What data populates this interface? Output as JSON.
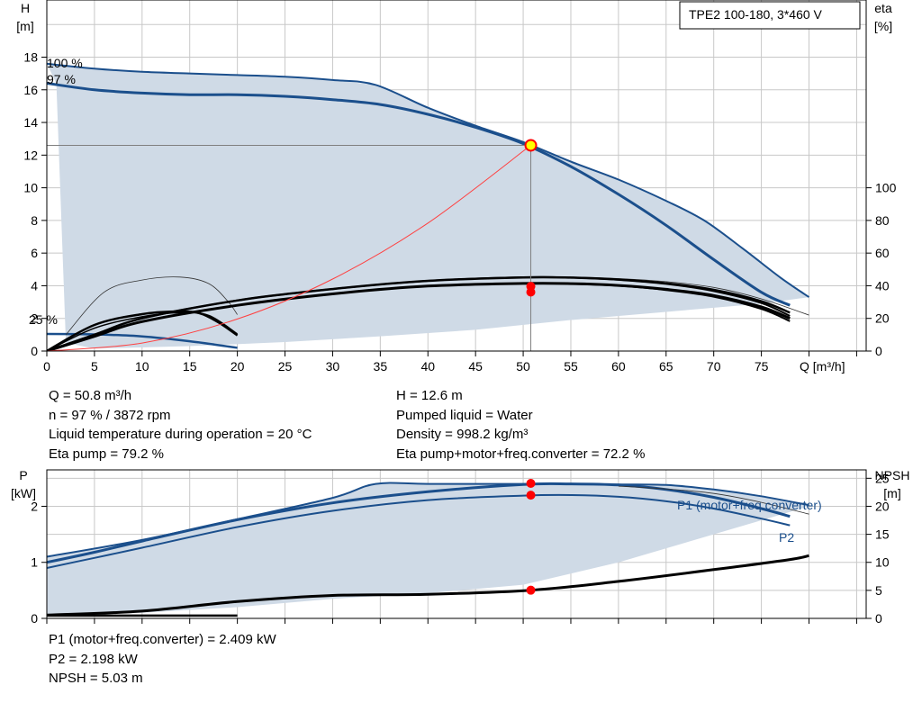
{
  "chart_data": [
    {
      "type": "line",
      "title": "TPE2 100-180, 3*460 V",
      "xlabel": "Q [m³/h]",
      "ylabel_left": [
        "H",
        "[m]"
      ],
      "ylabel_right": [
        "eta",
        "[%]"
      ],
      "xlim": [
        0,
        86
      ],
      "ylim": [
        0,
        21.5
      ],
      "x_ticks": [
        "0",
        "5",
        "10",
        "15",
        "20",
        "25",
        "30",
        "35",
        "40",
        "45",
        "50",
        "55",
        "60",
        "65",
        "70",
        "75"
      ],
      "y_ticks_left": [
        "0",
        "2",
        "4",
        "6",
        "8",
        "10",
        "12",
        "14",
        "16",
        "18"
      ],
      "y_ticks_right": [
        "0",
        "20",
        "40",
        "60",
        "80",
        "100"
      ],
      "grid": true,
      "curve_labels": [
        "100 %",
        "97 %",
        "25 %"
      ],
      "operating_point": {
        "x": 50.8,
        "y": 12.6
      },
      "eta_points": [
        79.2,
        72.2
      ],
      "series": [
        {
          "id": "h100",
          "x": [
            0,
            5,
            10,
            15,
            20,
            25,
            30,
            34.5,
            40,
            45,
            50,
            55,
            60,
            65,
            69,
            73,
            77,
            80
          ],
          "values": [
            17.6,
            17.3,
            17.1,
            17.0,
            16.9,
            16.8,
            16.6,
            16.3,
            14.9,
            13.8,
            12.8,
            11.6,
            10.5,
            9.2,
            8.0,
            6.3,
            4.5,
            3.3
          ]
        },
        {
          "id": "h97",
          "x": [
            0,
            5,
            10,
            15,
            20,
            25,
            30,
            35,
            40,
            45,
            50,
            55,
            60,
            65,
            70,
            75,
            78
          ],
          "values": [
            16.4,
            16.0,
            15.8,
            15.7,
            15.7,
            15.6,
            15.4,
            15.1,
            14.5,
            13.7,
            12.7,
            11.3,
            9.6,
            7.7,
            5.6,
            3.6,
            2.8
          ]
        },
        {
          "id": "h25",
          "x": [
            0,
            5,
            10,
            15,
            20
          ],
          "values": [
            1.05,
            1.02,
            0.9,
            0.6,
            0.2
          ]
        },
        {
          "id": "eta100",
          "x": [
            0,
            5,
            10,
            20,
            30,
            40,
            50,
            55,
            60,
            65,
            70,
            75,
            78
          ],
          "values": [
            0,
            10,
            20,
            31,
            38,
            43,
            45.1,
            45,
            43.8,
            41.5,
            37.5,
            30.5,
            23.5
          ]
        },
        {
          "id": "eta97",
          "x": [
            0,
            5,
            10,
            20,
            30,
            40,
            50,
            55,
            60,
            65,
            70,
            75,
            78
          ],
          "values": [
            0,
            10,
            20,
            31,
            38,
            43,
            45.2,
            45,
            43.6,
            41.1,
            36.7,
            29.4,
            21.5
          ]
        },
        {
          "id": "etatot100",
          "x": [
            0,
            5,
            10,
            20,
            30,
            40,
            50,
            55,
            60,
            65,
            70,
            75,
            78
          ],
          "values": [
            0,
            9,
            18,
            28,
            35,
            39.8,
            41.4,
            41.3,
            40.2,
            37.8,
            34.0,
            27.0,
            20.0
          ]
        },
        {
          "id": "etatot97",
          "x": [
            0,
            5,
            10,
            20,
            30,
            40,
            50,
            55,
            60,
            65,
            70,
            75,
            78
          ],
          "values": [
            0,
            9,
            18,
            28,
            35,
            39.8,
            41.4,
            41.2,
            40.0,
            37.4,
            33.3,
            25.8,
            18.3
          ]
        },
        {
          "id": "eta25",
          "x": [
            0,
            5,
            10,
            13.5,
            16,
            18,
            20
          ],
          "values": [
            0,
            16,
            22.6,
            24.2,
            23.2,
            17.6,
            9.6
          ]
        },
        {
          "id": "eta25b",
          "x": [
            0,
            5,
            10,
            14,
            17,
            20
          ],
          "values": [
            0,
            14,
            21,
            23.5,
            21.8,
            10.5
          ]
        },
        {
          "id": "eta25thin",
          "x": [
            2,
            6,
            10,
            14,
            17,
            19,
            20
          ],
          "values": [
            10,
            36,
            43.5,
            45.3,
            41.3,
            30.5,
            22.3
          ]
        },
        {
          "id": "thin",
          "x": [
            0,
            10,
            20,
            30,
            40,
            50,
            55,
            60,
            65,
            70,
            75,
            80
          ],
          "values": [
            0,
            20,
            31,
            38,
            43,
            45.3,
            45.3,
            44.4,
            42.5,
            39.0,
            32.0,
            22.0
          ]
        },
        {
          "id": "system",
          "x": [
            0,
            10,
            20,
            30,
            40,
            50.8
          ],
          "values": [
            0,
            0.49,
            1.96,
            4.41,
            7.84,
            12.6
          ]
        }
      ]
    },
    {
      "type": "line",
      "ylabel_left": [
        "P",
        "[kW]"
      ],
      "ylabel_right": [
        "NPSH",
        "[m]"
      ],
      "xlim": [
        0,
        86
      ],
      "ylim": [
        0,
        2.65
      ],
      "y_ticks_left": [
        "0",
        "1",
        "2"
      ],
      "y_ticks_right": [
        "0",
        "5",
        "10",
        "15",
        "20",
        "25"
      ],
      "grid": true,
      "curve_labels": [
        "P1 (motor+freq.converter)",
        "P2"
      ],
      "markers": [
        2.409,
        2.198,
        5.03
      ],
      "series": [
        {
          "id": "p1_100",
          "x": [
            0,
            10,
            20,
            30,
            34.5,
            40,
            50,
            55,
            60,
            65,
            70,
            75,
            80
          ],
          "values": [
            1.1,
            1.4,
            1.77,
            2.15,
            2.4,
            2.4,
            2.4,
            2.4,
            2.39,
            2.38,
            2.3,
            2.18,
            2.02
          ]
        },
        {
          "id": "p1_97",
          "x": [
            0,
            5,
            10,
            20,
            30,
            40,
            50,
            55,
            60,
            65,
            70,
            75,
            78
          ],
          "values": [
            1.0,
            1.18,
            1.38,
            1.76,
            2.06,
            2.26,
            2.39,
            2.4,
            2.38,
            2.3,
            2.16,
            1.96,
            1.82
          ]
        },
        {
          "id": "p2_97",
          "x": [
            0,
            5,
            10,
            20,
            30,
            40,
            50,
            55,
            60,
            65,
            70,
            75,
            78
          ],
          "values": [
            0.9,
            1.08,
            1.26,
            1.63,
            1.92,
            2.11,
            2.19,
            2.2,
            2.17,
            2.09,
            1.96,
            1.78,
            1.66
          ]
        },
        {
          "id": "p_thin",
          "x": [
            60,
            65,
            70,
            75,
            80
          ],
          "values": [
            2.36,
            2.31,
            2.23,
            2.07,
            1.86
          ]
        },
        {
          "id": "p_low",
          "x": [
            0,
            5,
            10,
            15,
            20
          ],
          "values": [
            0.05,
            0.05,
            0.05,
            0.05,
            0.05
          ]
        },
        {
          "id": "npsh",
          "x": [
            0,
            10,
            20,
            30,
            40,
            50.8,
            60,
            70,
            78,
            80
          ],
          "values": [
            0.6,
            1.3,
            3.0,
            4.1,
            4.3,
            5.03,
            6.6,
            8.7,
            10.5,
            11.2
          ]
        }
      ]
    }
  ],
  "info_upper_left": [
    "Q = 50.8 m³/h",
    "n = 97 % / 3872 rpm",
    "Liquid temperature during operation = 20 °C",
    "Eta pump = 79.2 %"
  ],
  "info_upper_right": [
    "H = 12.6 m",
    "Pumped liquid = Water",
    "Density = 998.2 kg/m³",
    "Eta pump+motor+freq.converter = 72.2 %"
  ],
  "info_lower": [
    "P1 (motor+freq.converter) = 2.409 kW",
    "P2 = 2.198 kW",
    "NPSH = 5.03 m"
  ],
  "colors": {
    "curve_blue": "#1b4f8c",
    "fill": "#cfdae6",
    "grid": "#c8c8c8",
    "marker": "#ff0000",
    "highlight": "#ffff00",
    "system": "#ff4040"
  }
}
